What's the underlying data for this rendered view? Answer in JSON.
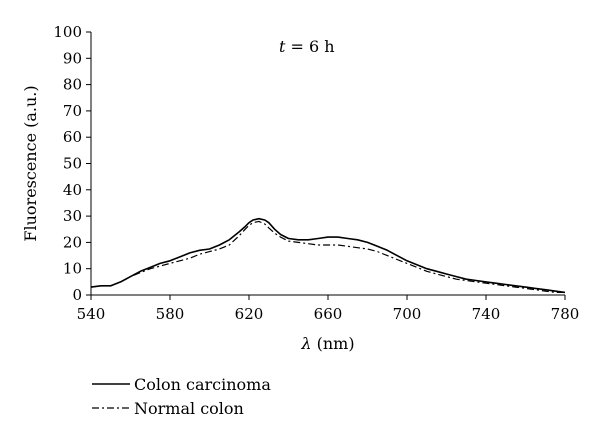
{
  "chart_data": {
    "type": "line",
    "xlabel_symbol": "λ",
    "xlabel_unit": "(nm)",
    "ylabel": "Fluorescence (a.u.)",
    "annotation_var": "t",
    "annotation_rest": " = 6 h",
    "xlim": [
      540,
      780
    ],
    "ylim": [
      0,
      100
    ],
    "x_ticks": [
      540,
      580,
      620,
      660,
      700,
      740,
      780
    ],
    "y_ticks": [
      0,
      10,
      20,
      30,
      40,
      50,
      60,
      70,
      80,
      90,
      100
    ],
    "grid": false,
    "legend_position": "bottom-left",
    "series": [
      {
        "name": "Colon carcinoma",
        "style": "solid",
        "x": [
          540,
          545,
          550,
          555,
          560,
          565,
          570,
          575,
          580,
          585,
          590,
          595,
          600,
          605,
          610,
          615,
          618,
          620,
          622,
          625,
          628,
          630,
          633,
          636,
          640,
          645,
          650,
          655,
          660,
          665,
          670,
          675,
          680,
          685,
          690,
          695,
          700,
          705,
          710,
          715,
          720,
          725,
          730,
          735,
          740,
          745,
          750,
          755,
          760,
          765,
          770,
          775,
          780
        ],
        "y": [
          3,
          3.5,
          3.5,
          5,
          7,
          9,
          10.5,
          12,
          13,
          14.5,
          16,
          17,
          17.5,
          19,
          21,
          24,
          26,
          27.5,
          28.5,
          29,
          28.5,
          27.5,
          25,
          23,
          21.5,
          21,
          21,
          21.5,
          22,
          22,
          21.5,
          21,
          20,
          18.5,
          17,
          15,
          13,
          11.5,
          10,
          9,
          8,
          7,
          6,
          5.5,
          5,
          4.5,
          4,
          3.5,
          3,
          2.5,
          2,
          1.5,
          1
        ]
      },
      {
        "name": "Normal colon",
        "style": "dashdot",
        "x": [
          540,
          545,
          550,
          555,
          560,
          565,
          570,
          575,
          580,
          585,
          590,
          595,
          600,
          605,
          610,
          615,
          618,
          620,
          622,
          625,
          628,
          630,
          633,
          636,
          640,
          645,
          650,
          655,
          660,
          665,
          670,
          675,
          680,
          685,
          690,
          695,
          700,
          705,
          710,
          715,
          720,
          725,
          730,
          735,
          740,
          745,
          750,
          755,
          760,
          765,
          770,
          775,
          780
        ],
        "y": [
          3,
          3.5,
          3.5,
          5,
          7,
          8.5,
          10,
          11,
          12,
          13,
          14,
          15.5,
          16.5,
          17.5,
          19,
          22.5,
          25,
          26.5,
          27.5,
          28,
          27,
          25.5,
          23.5,
          22,
          20.5,
          20,
          19.5,
          19,
          19,
          19,
          18.5,
          18,
          17.5,
          16.5,
          15,
          13.5,
          12,
          10.5,
          9,
          8,
          7,
          6,
          5.5,
          5,
          4.5,
          4,
          3.5,
          3,
          2.5,
          2,
          1.5,
          1,
          1
        ]
      }
    ]
  }
}
